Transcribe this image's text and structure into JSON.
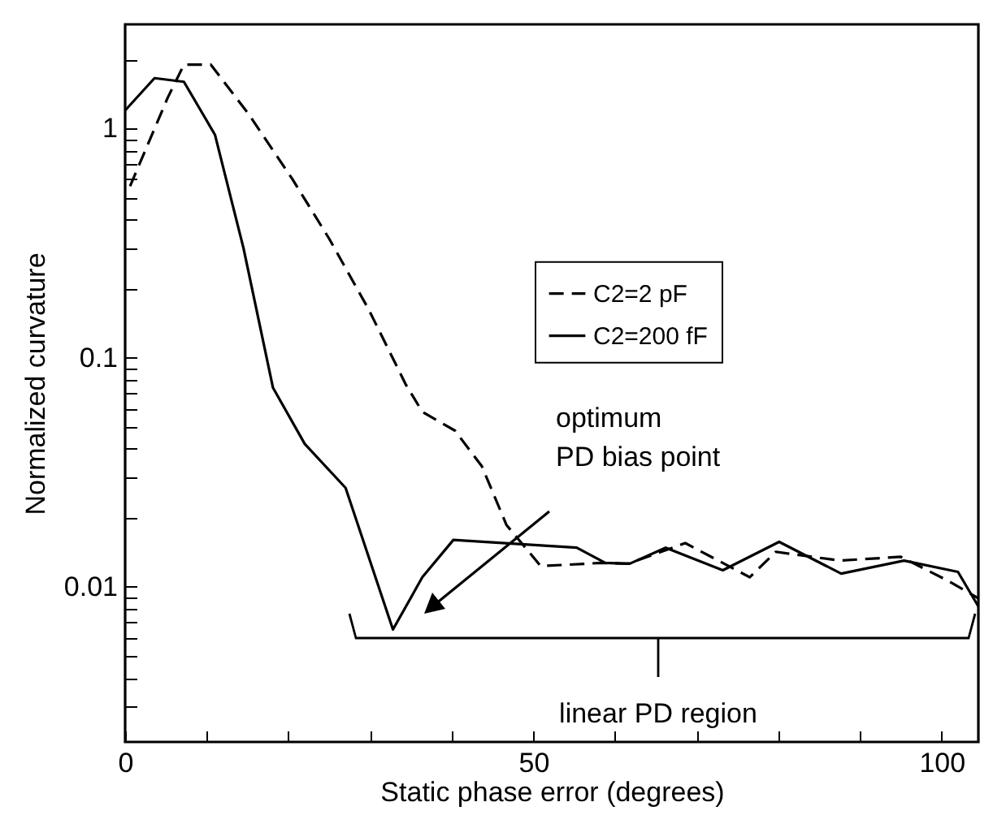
{
  "chart_data": {
    "type": "line",
    "xlabel": "Static phase error (degrees)",
    "ylabel": "Normalized curvature",
    "log": "y",
    "xlim": [
      0,
      104.5
    ],
    "ylim": [
      0.0021,
      2.85
    ],
    "xticks": [
      0,
      {
        "value": 10,
        "label": null
      },
      {
        "value": 20,
        "label": null
      },
      {
        "value": 30,
        "label": null
      },
      {
        "value": 40,
        "label": null
      },
      50,
      {
        "value": 60,
        "label": null
      },
      {
        "value": 70,
        "label": null
      },
      {
        "value": 80,
        "label": null
      },
      {
        "value": 90,
        "label": null
      },
      100
    ],
    "yticks": [
      {
        "value": 0.003,
        "label": null
      },
      {
        "value": 0.004,
        "label": null
      },
      {
        "value": 0.005,
        "label": null
      },
      {
        "value": 0.006,
        "label": null
      },
      {
        "value": 0.007,
        "label": null
      },
      {
        "value": 0.008,
        "label": null
      },
      {
        "value": 0.009,
        "label": null
      },
      0.01,
      {
        "value": 0.02,
        "label": null
      },
      {
        "value": 0.03,
        "label": null
      },
      {
        "value": 0.04,
        "label": null
      },
      {
        "value": 0.05,
        "label": null
      },
      {
        "value": 0.06,
        "label": null
      },
      {
        "value": 0.07,
        "label": null
      },
      {
        "value": 0.08,
        "label": null
      },
      {
        "value": 0.09,
        "label": null
      },
      0.1,
      {
        "value": 0.2,
        "label": null
      },
      {
        "value": 0.3,
        "label": null
      },
      {
        "value": 0.4,
        "label": null
      },
      {
        "value": 0.5,
        "label": null
      },
      {
        "value": 0.6,
        "label": null
      },
      {
        "value": 0.7,
        "label": null
      },
      {
        "value": 0.8,
        "label": null
      },
      {
        "value": 0.9,
        "label": null
      },
      1,
      {
        "value": 2,
        "label": null
      }
    ],
    "series": [
      {
        "name": "C2=2 pF",
        "color": "#000000",
        "line_style": "dashed",
        "x": [
          0.6,
          5.2,
          7.2,
          10.5,
          15.1,
          20.5,
          25,
          29.8,
          34.4,
          36.4,
          40.4,
          43.7,
          46.7,
          50.9,
          58.3,
          61.6,
          68.6,
          76.5,
          79.7,
          87.5,
          95,
          100.6,
          104.5
        ],
        "values": [
          0.56,
          1.36,
          1.9,
          1.9,
          1.16,
          0.6,
          0.33,
          0.163,
          0.076,
          0.058,
          0.048,
          0.0335,
          0.0186,
          0.0123,
          0.0127,
          0.0126,
          0.0155,
          0.011,
          0.0142,
          0.013,
          0.0135,
          0.0107,
          0.0089
        ]
      },
      {
        "name": "C2=200 fF",
        "color": "#000000",
        "line_style": "solid",
        "x": [
          0,
          3.6,
          7.2,
          11,
          14.5,
          18.1,
          22,
          27,
          32.8,
          36.4,
          40.2,
          55.3,
          58.8,
          61.8,
          66.2,
          73.2,
          80.1,
          87.7,
          95.4,
          102,
          104.5
        ],
        "values": [
          1.2,
          1.66,
          1.6,
          0.94,
          0.3,
          0.074,
          0.042,
          0.027,
          0.0065,
          0.011,
          0.016,
          0.0148,
          0.0127,
          0.0126,
          0.0148,
          0.0118,
          0.0157,
          0.0114,
          0.013,
          0.0116,
          0.0082
        ]
      }
    ],
    "legend": "right",
    "grid": false,
    "annotations": [
      "optimum PD bias point",
      "linear PD region"
    ]
  }
}
